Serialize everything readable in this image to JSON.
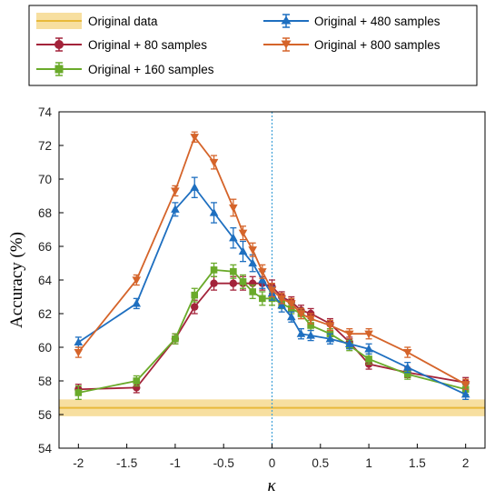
{
  "chart_data": {
    "type": "line",
    "xlabel": "κ",
    "ylabel": "Accuracy (%)",
    "xlim": [
      -2.2,
      2.2
    ],
    "ylim": [
      54,
      74
    ],
    "xticks": [
      -2,
      -1.5,
      -1,
      -0.5,
      0,
      0.5,
      1,
      1.5,
      2
    ],
    "xtick_labels": [
      "-2",
      "-1.5",
      "-1",
      "-0.5",
      "0",
      "0.5",
      "1",
      "1.5",
      "2"
    ],
    "yticks": [
      54,
      56,
      58,
      60,
      62,
      64,
      66,
      68,
      70,
      72,
      74
    ],
    "ytick_labels": [
      "54",
      "56",
      "58",
      "60",
      "62",
      "64",
      "66",
      "68",
      "70",
      "72",
      "74"
    ],
    "grid": false,
    "legend_position": "top",
    "reference_line": {
      "name": "Original  data",
      "value": 56.4,
      "band": [
        55.9,
        56.9
      ],
      "color": "#E8B93A",
      "band_color": "#F7DFA0"
    },
    "vertical_marker": {
      "x": 0,
      "color": "#3FA0D8"
    },
    "x": [
      -2,
      -1.4,
      -1,
      -0.8,
      -0.6,
      -0.4,
      -0.3,
      -0.2,
      -0.1,
      0,
      0.1,
      0.2,
      0.3,
      0.4,
      0.6,
      0.8,
      1,
      1.4,
      2
    ],
    "series": [
      {
        "name": "Original  + 80 samples",
        "color": "#A3233A",
        "marker": "circle",
        "values": [
          57.5,
          57.6,
          60.5,
          62.4,
          63.8,
          63.8,
          63.8,
          63.8,
          63.8,
          63.6,
          63.0,
          62.7,
          62.2,
          62.0,
          61.4,
          60.3,
          59.0,
          58.5,
          57.9
        ],
        "errors": [
          0.3,
          0.3,
          0.3,
          0.4,
          0.4,
          0.4,
          0.4,
          0.4,
          0.4,
          0.4,
          0.3,
          0.3,
          0.3,
          0.3,
          0.3,
          0.3,
          0.3,
          0.3,
          0.3
        ]
      },
      {
        "name": "Original  + 160 samples",
        "color": "#6AAA2A",
        "marker": "square",
        "values": [
          57.3,
          58.0,
          60.5,
          63.1,
          64.6,
          64.5,
          63.9,
          63.3,
          62.9,
          62.9,
          62.6,
          62.3,
          62.0,
          61.3,
          60.8,
          60.1,
          59.3,
          58.4,
          57.5
        ],
        "errors": [
          0.4,
          0.3,
          0.3,
          0.4,
          0.4,
          0.4,
          0.4,
          0.4,
          0.4,
          0.4,
          0.3,
          0.3,
          0.3,
          0.3,
          0.3,
          0.3,
          0.3,
          0.3,
          0.3
        ]
      },
      {
        "name": "Original  + 480 samples",
        "color": "#1E6FC0",
        "marker": "triangle-up",
        "values": [
          60.3,
          62.6,
          68.2,
          69.5,
          68.0,
          66.5,
          65.7,
          65.0,
          64.0,
          63.2,
          62.5,
          61.8,
          60.8,
          60.7,
          60.5,
          60.2,
          59.9,
          58.8,
          57.2
        ],
        "errors": [
          0.3,
          0.3,
          0.4,
          0.6,
          0.6,
          0.6,
          0.6,
          0.5,
          0.5,
          0.4,
          0.4,
          0.3,
          0.3,
          0.3,
          0.3,
          0.3,
          0.3,
          0.3,
          0.3
        ]
      },
      {
        "name": "Original  + 800 samples",
        "color": "#D5642A",
        "marker": "triangle-down",
        "values": [
          59.7,
          64.0,
          69.3,
          72.5,
          71.0,
          68.3,
          66.8,
          65.8,
          64.5,
          63.4,
          62.9,
          62.6,
          62.0,
          61.7,
          61.3,
          60.8,
          60.8,
          59.7,
          57.8
        ],
        "errors": [
          0.3,
          0.3,
          0.3,
          0.3,
          0.4,
          0.5,
          0.4,
          0.4,
          0.4,
          0.4,
          0.3,
          0.3,
          0.3,
          0.3,
          0.3,
          0.3,
          0.3,
          0.3,
          0.3
        ]
      }
    ]
  }
}
